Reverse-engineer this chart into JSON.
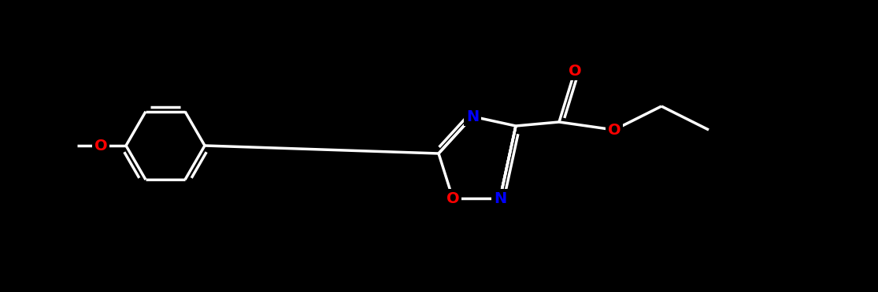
{
  "bg_color": "#000000",
  "bond_color": "#000000",
  "line_color": "white",
  "atom_colors": {
    "O": "#ff0000",
    "N": "#0000ff",
    "C": "white"
  },
  "bond_width": 2.5,
  "font_size": 16
}
